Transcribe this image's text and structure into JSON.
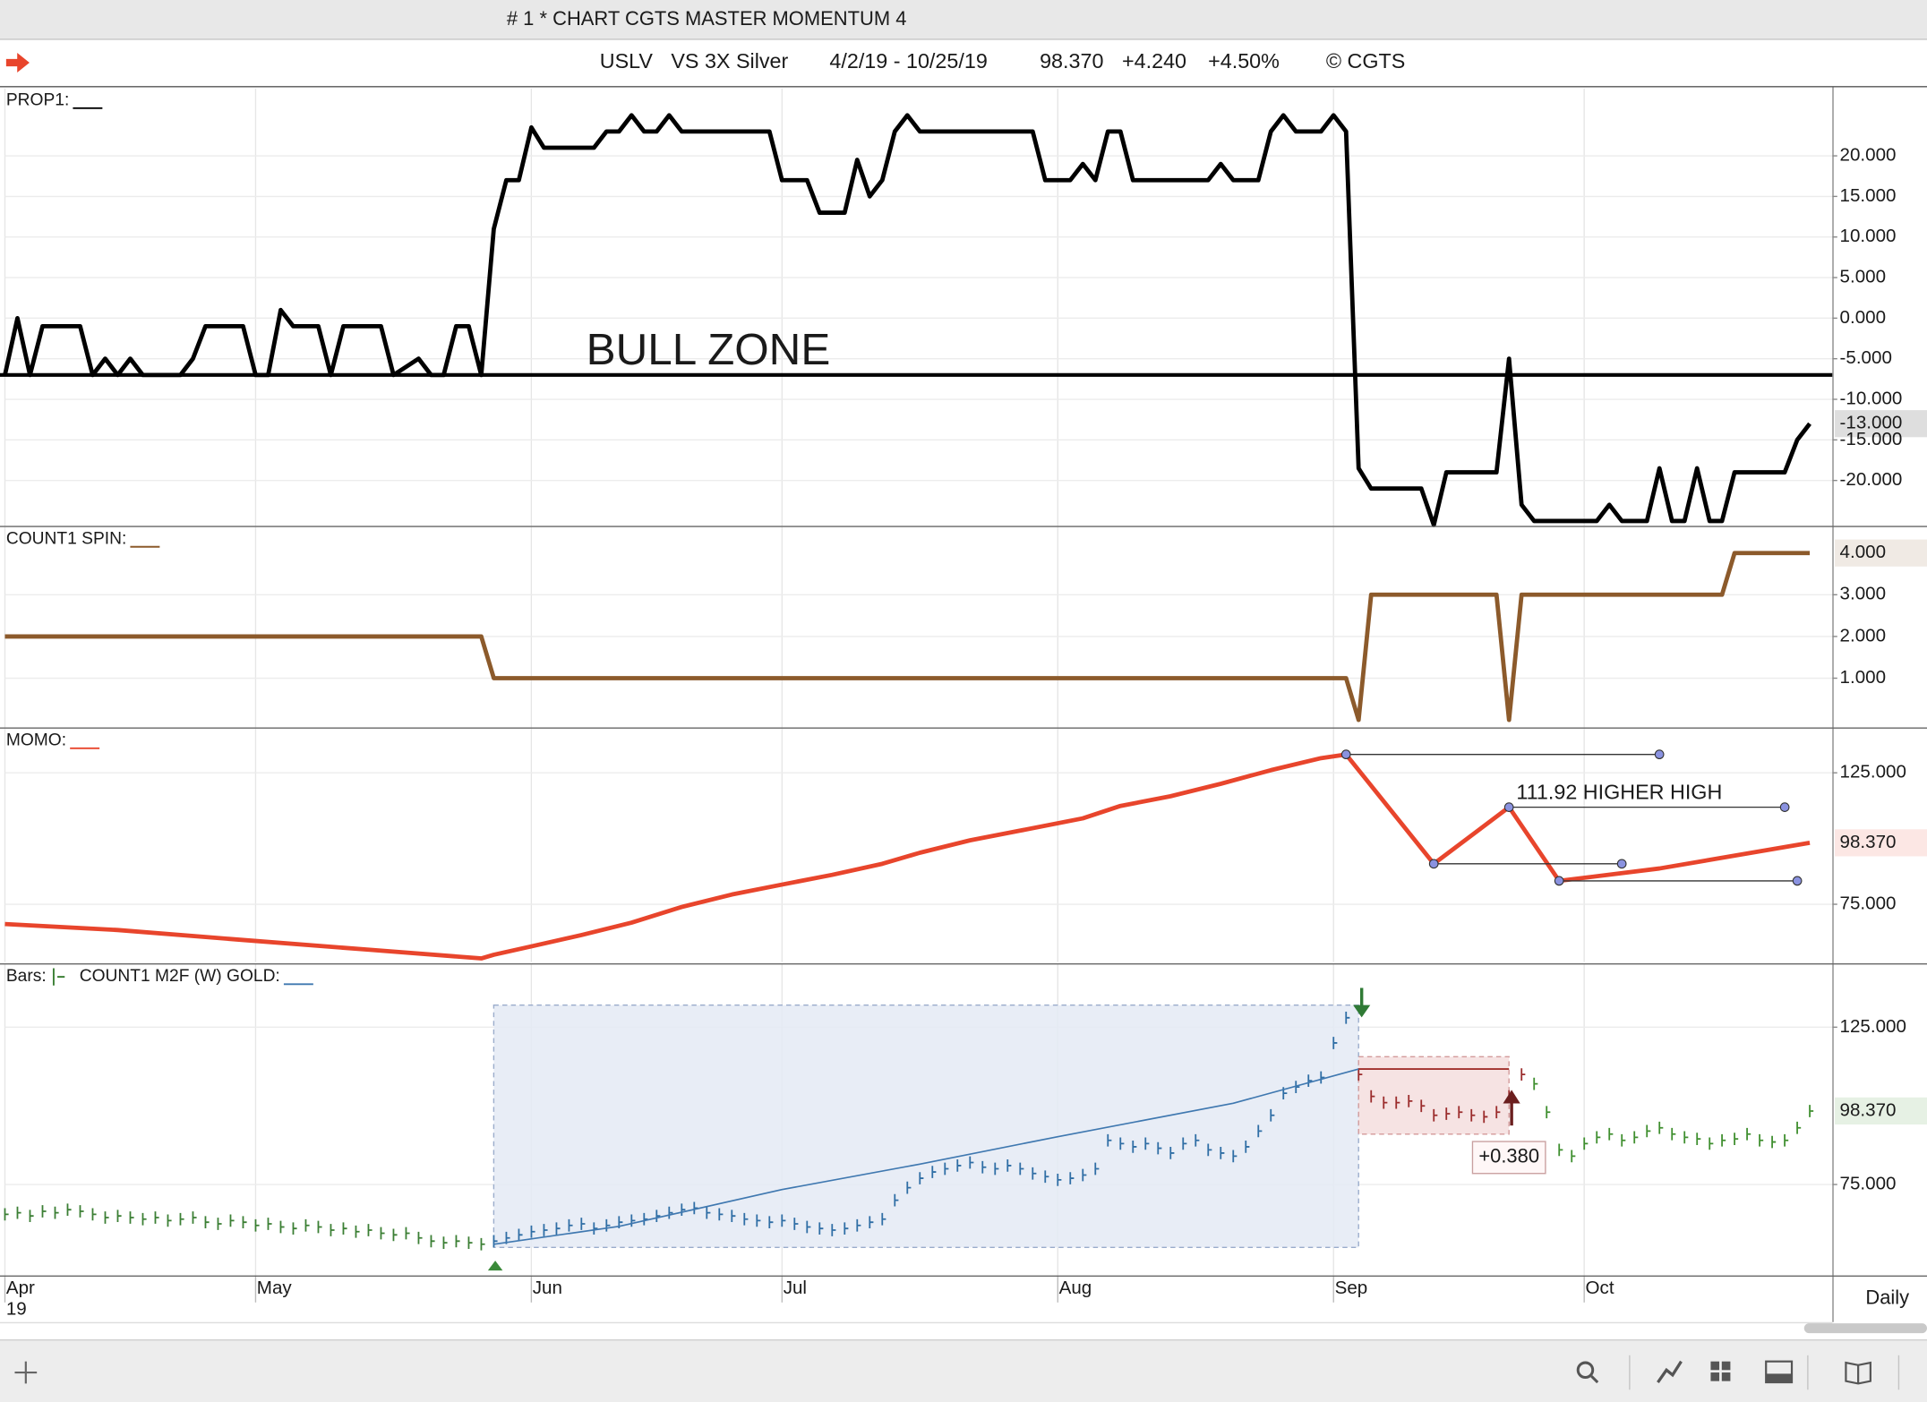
{
  "window": {
    "title": "# 1 * CHART CGTS MASTER MOMENTUM 4"
  },
  "header": {
    "symbol": "USLV",
    "description": "VS 3X Silver",
    "date_range": "4/2/19 - 10/25/19",
    "last": "98.370",
    "change": "+4.240",
    "change_pct": "+4.50%",
    "copyright": "© CGTS"
  },
  "time_axis": {
    "xlim": [
      0,
      145.8
    ],
    "xticks": [
      {
        "value": 0,
        "label": "Apr"
      },
      {
        "value": 20,
        "label": "May"
      },
      {
        "value": 42,
        "label": "Jun"
      },
      {
        "value": 62,
        "label": "Jul"
      },
      {
        "value": 84,
        "label": "Aug"
      },
      {
        "value": 106,
        "label": "Sep"
      },
      {
        "value": 126,
        "label": "Oct"
      }
    ],
    "year": "19",
    "interval": "Daily"
  },
  "chart_data": [
    {
      "type": "line",
      "ylim": [
        -25.6,
        28.3
      ],
      "yticks": [
        {
          "value": 20,
          "label": "20.000"
        },
        {
          "value": 15,
          "label": "15.000"
        },
        {
          "value": 10,
          "label": "10.000"
        },
        {
          "value": 5,
          "label": "5.000"
        },
        {
          "value": 0,
          "label": "0.000"
        },
        {
          "value": -5,
          "label": "-5.000"
        },
        {
          "value": -10,
          "label": "-10.000"
        },
        {
          "value": -15,
          "label": "-15.000"
        },
        {
          "value": -20,
          "label": "-20.000"
        }
      ],
      "series": [
        {
          "name": "PROP1:",
          "color": "#000000",
          "x": [
            0,
            1,
            2,
            3,
            6,
            7,
            8,
            9,
            10,
            11,
            14,
            15,
            16,
            19,
            20,
            21,
            22,
            23,
            25,
            26,
            27,
            30,
            31,
            33,
            34,
            35,
            36,
            37,
            38,
            39,
            40,
            41,
            42,
            43,
            47,
            48,
            49,
            50,
            51,
            52,
            53,
            54,
            61,
            62,
            64,
            65,
            67,
            68,
            69,
            70,
            71,
            72,
            73,
            82,
            83,
            85,
            86,
            87,
            88,
            89,
            90,
            96,
            97,
            98,
            100,
            101,
            102,
            103,
            105,
            106,
            107,
            108,
            109,
            113,
            114,
            115,
            119,
            120,
            121,
            122,
            127,
            128,
            129,
            131,
            132,
            133,
            134,
            135,
            136,
            137,
            138,
            142,
            143,
            144
          ],
          "values": [
            -7,
            0,
            -7,
            -1,
            -1,
            -7,
            -5,
            -7,
            -5,
            -7,
            -7,
            -5,
            -1,
            -1,
            -7,
            -7,
            1,
            -1,
            -1,
            -7,
            -1,
            -1,
            -7,
            -5,
            -7,
            -7,
            -1,
            -1,
            -7,
            11,
            17,
            17,
            23.5,
            21,
            21,
            23,
            23,
            25,
            23,
            23,
            25,
            23,
            23,
            17,
            17,
            13,
            13,
            19.5,
            15,
            17,
            23,
            25,
            23,
            23,
            17,
            17,
            19,
            17,
            23,
            23,
            17,
            17,
            19,
            17,
            17,
            23,
            25,
            23,
            23,
            25,
            23,
            -18.5,
            -21,
            -21,
            -25.5,
            -19,
            -19,
            -5,
            -23,
            -25,
            -25,
            -23,
            -25,
            -25,
            -18.5,
            -25,
            -25,
            -18.5,
            -25,
            -25,
            -19,
            -19,
            -15,
            -13
          ]
        }
      ],
      "reference_line": {
        "value": -7,
        "label": "BULL ZONE"
      },
      "last_label": "-13.000"
    },
    {
      "type": "line",
      "ylim": [
        -0.18,
        4.62
      ],
      "yticks": [
        {
          "value": 3,
          "label": "3.000"
        },
        {
          "value": 2,
          "label": "2.000"
        },
        {
          "value": 1,
          "label": "1.000"
        }
      ],
      "series": [
        {
          "name": "COUNT1 SPIN:",
          "color": "#8c5a2b",
          "x": [
            0,
            38,
            39,
            107,
            108,
            109,
            119,
            120,
            121,
            137,
            138,
            144
          ],
          "values": [
            2,
            2,
            1,
            1,
            0,
            3,
            3,
            0,
            3,
            3,
            4,
            4
          ]
        }
      ],
      "last_label": "4.000"
    },
    {
      "type": "line",
      "ylim": [
        53,
        141.8
      ],
      "yticks": [
        {
          "value": 125,
          "label": "125.000"
        },
        {
          "value": 75,
          "label": "75.000"
        }
      ],
      "series": [
        {
          "name": "MOMO:",
          "color": "#e8452c",
          "x": [
            0,
            9,
            19,
            29,
            38,
            39,
            42,
            46,
            50,
            54,
            58,
            62,
            66,
            70,
            73,
            77,
            81,
            86,
            89,
            93,
            97,
            101,
            105,
            107,
            114,
            120,
            124,
            132,
            144
          ],
          "values": [
            67.5,
            65.2,
            61.4,
            57.7,
            54.4,
            55.8,
            59,
            63.3,
            68,
            74,
            78.7,
            82.5,
            86.2,
            90.4,
            94.6,
            99.3,
            103,
            107.7,
            112.4,
            116.1,
            120.8,
            126,
            130.6,
            132,
            90.4,
            111.92,
            83.9,
            88.6,
            98.37
          ]
        }
      ],
      "levels": [
        {
          "x": [
            107,
            132
          ],
          "value": 132,
          "color": "#333333",
          "endpoints": true
        },
        {
          "x": [
            120,
            142
          ],
          "value": 111.92,
          "color": "#333333",
          "endpoints": true,
          "label": "111.92 HIGHER HIGH"
        },
        {
          "x": [
            114,
            129
          ],
          "value": 90.4,
          "color": "#333333",
          "endpoints": true
        },
        {
          "x": [
            124,
            143
          ],
          "value": 83.9,
          "color": "#333333",
          "endpoints": true
        }
      ],
      "last_label": "98.370"
    },
    {
      "type": "price_bars",
      "ylim": [
        46.1,
        144.9
      ],
      "yticks": [
        {
          "value": 125,
          "label": "125.000"
        },
        {
          "value": 75,
          "label": "75.000"
        }
      ],
      "series": [
        {
          "name": "Bars:",
          "groups": [
            {
              "color": "#3b7f34",
              "x": [
                0,
                1,
                2,
                3,
                4,
                5,
                6,
                7,
                8,
                9,
                10,
                11,
                12,
                13,
                14,
                15,
                16,
                17,
                18,
                19,
                20,
                21,
                22,
                23,
                24,
                25,
                26,
                27,
                28,
                29,
                30,
                31,
                32,
                33,
                34,
                35,
                36,
                37,
                38
              ],
              "values": [
                65.5,
                66,
                65,
                66.5,
                66,
                67,
                66.5,
                65.5,
                64.5,
                65,
                64.5,
                64,
                64.5,
                63.5,
                64,
                64.5,
                63,
                62.5,
                63.5,
                63,
                62,
                62.5,
                61.5,
                61,
                62,
                61.5,
                60.5,
                61,
                60,
                60.5,
                59.5,
                59,
                59.5,
                58,
                57,
                56.5,
                57,
                56.5,
                56
              ]
            },
            {
              "color": "#2f6ea5",
              "x": [
                39,
                40,
                41,
                42,
                43,
                44,
                45,
                46,
                47,
                48,
                49,
                50,
                51,
                52,
                53,
                54,
                55,
                56,
                57,
                58,
                59,
                60,
                61,
                62,
                63,
                64,
                65,
                66,
                67,
                68,
                69,
                70,
                71,
                72,
                73,
                74,
                75,
                76,
                77,
                78,
                79,
                80,
                81,
                82,
                83,
                84,
                85,
                86,
                87,
                88,
                89,
                90,
                91,
                92,
                93,
                94,
                95,
                96,
                97,
                98,
                99,
                100,
                101,
                102,
                103,
                104,
                105,
                106,
                107
              ],
              "values": [
                57,
                58,
                59,
                60,
                60.5,
                61,
                62,
                62.5,
                61,
                62,
                63,
                63.5,
                64,
                65,
                66,
                67,
                67.5,
                66,
                65.5,
                65,
                64,
                63.5,
                63,
                63.5,
                62.5,
                61.5,
                61,
                60.5,
                61,
                62,
                63,
                64,
                70,
                74,
                77,
                79,
                80,
                81,
                82,
                80.5,
                80,
                81,
                80,
                78.5,
                77.5,
                76.5,
                77,
                78,
                80,
                89,
                88,
                87,
                88,
                86.5,
                85,
                88,
                89,
                86,
                85,
                84,
                87,
                92,
                97,
                104,
                106,
                108,
                109,
                120,
                128
              ]
            },
            {
              "color": "#9b2c2c",
              "x": [
                108,
                109,
                110,
                111,
                112,
                113,
                114,
                115,
                116,
                117,
                118,
                119,
                120,
                121
              ],
              "values": [
                110,
                103,
                101,
                101,
                101.5,
                100,
                97,
                97.5,
                98,
                97,
                96.5,
                98,
                103,
                110
              ]
            },
            {
              "color": "#3f8f2f",
              "x": [
                122,
                123,
                124,
                125,
                126,
                127,
                128,
                129,
                130,
                131,
                132,
                133,
                134,
                135,
                136,
                137,
                138,
                139,
                140,
                141,
                142,
                143,
                144
              ],
              "values": [
                107,
                98,
                86,
                84,
                88,
                90,
                91,
                89,
                90,
                92,
                93,
                91,
                90,
                89.5,
                88,
                89,
                89.5,
                91,
                89,
                88.5,
                89,
                93,
                98.37
              ]
            }
          ]
        },
        {
          "name": "COUNT1 M2F (W) GOLD:",
          "color": "#3f78b0",
          "x": [
            39,
            49,
            62,
            73,
            84,
            98,
            108
          ],
          "values": [
            56,
            61.7,
            73.4,
            81.5,
            90.2,
            100.8,
            111.7
          ]
        }
      ],
      "zones": [
        {
          "x": [
            39,
            108
          ],
          "y": [
            55,
            132
          ],
          "fill": "#e4eaf4",
          "stroke": "#9aaccb"
        },
        {
          "x": [
            108,
            120
          ],
          "y": [
            91,
            115.6
          ],
          "fill": "#f5dede",
          "stroke": "#d39a9a",
          "label": "+0.380"
        }
      ],
      "levels": [
        {
          "x": [
            108,
            120
          ],
          "value": 111.7,
          "color": "#a0302c"
        }
      ],
      "last_label": "98.370"
    }
  ]
}
